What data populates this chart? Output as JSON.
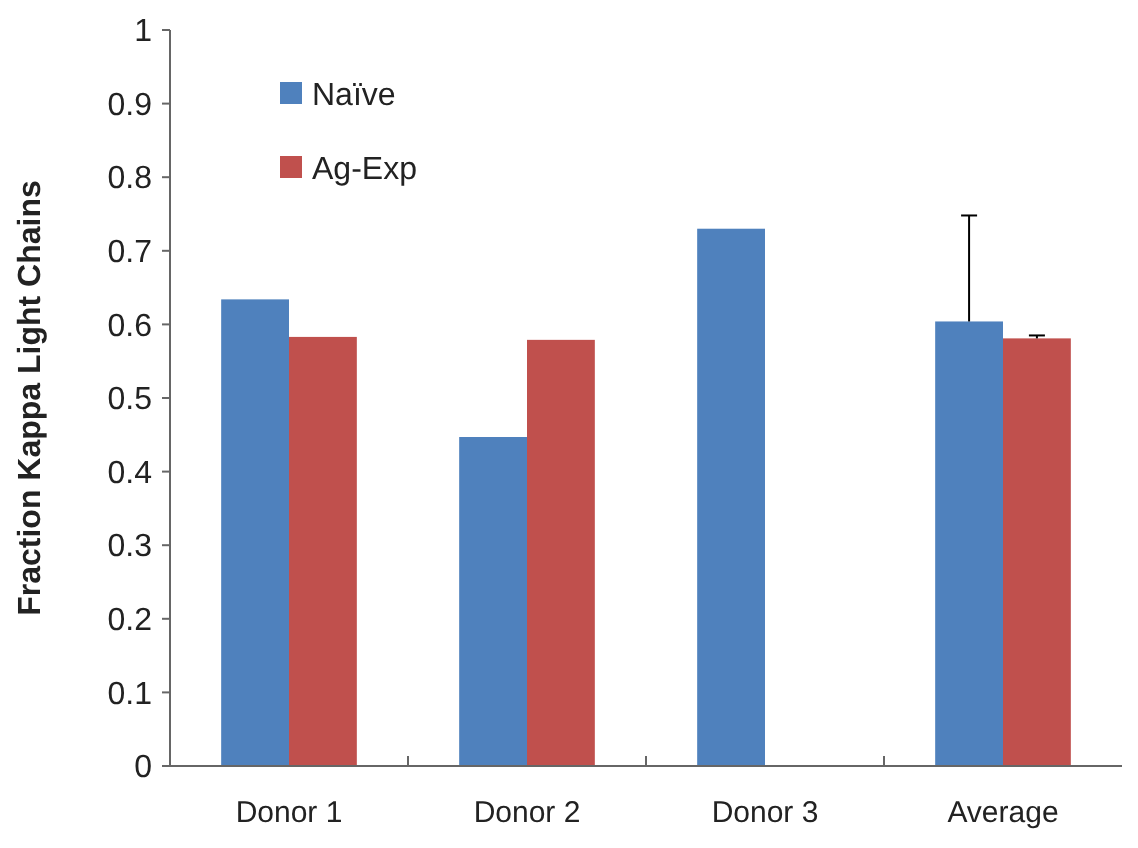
{
  "chart_data": {
    "type": "bar",
    "ylabel": "Fraction Kappa Light Chains",
    "categories": [
      "Donor 1",
      "Donor 2",
      "Donor 3",
      "Average"
    ],
    "series": [
      {
        "name": "Naïve",
        "color": "#4f81bd",
        "values": [
          0.634,
          0.447,
          0.73,
          0.604
        ],
        "errors": [
          null,
          null,
          null,
          [
            0.604,
            0.748
          ]
        ]
      },
      {
        "name": "Ag-Exp",
        "color": "#c0504d",
        "values": [
          0.583,
          0.579,
          null,
          0.581
        ],
        "errors": [
          null,
          null,
          null,
          [
            0.581,
            0.585
          ]
        ]
      }
    ],
    "ylim": [
      0,
      1
    ],
    "yticks": [
      0,
      0.1,
      0.2,
      0.3,
      0.4,
      0.5,
      0.6,
      0.7,
      0.8,
      0.9,
      1
    ],
    "grid": false,
    "legend": "top left"
  }
}
